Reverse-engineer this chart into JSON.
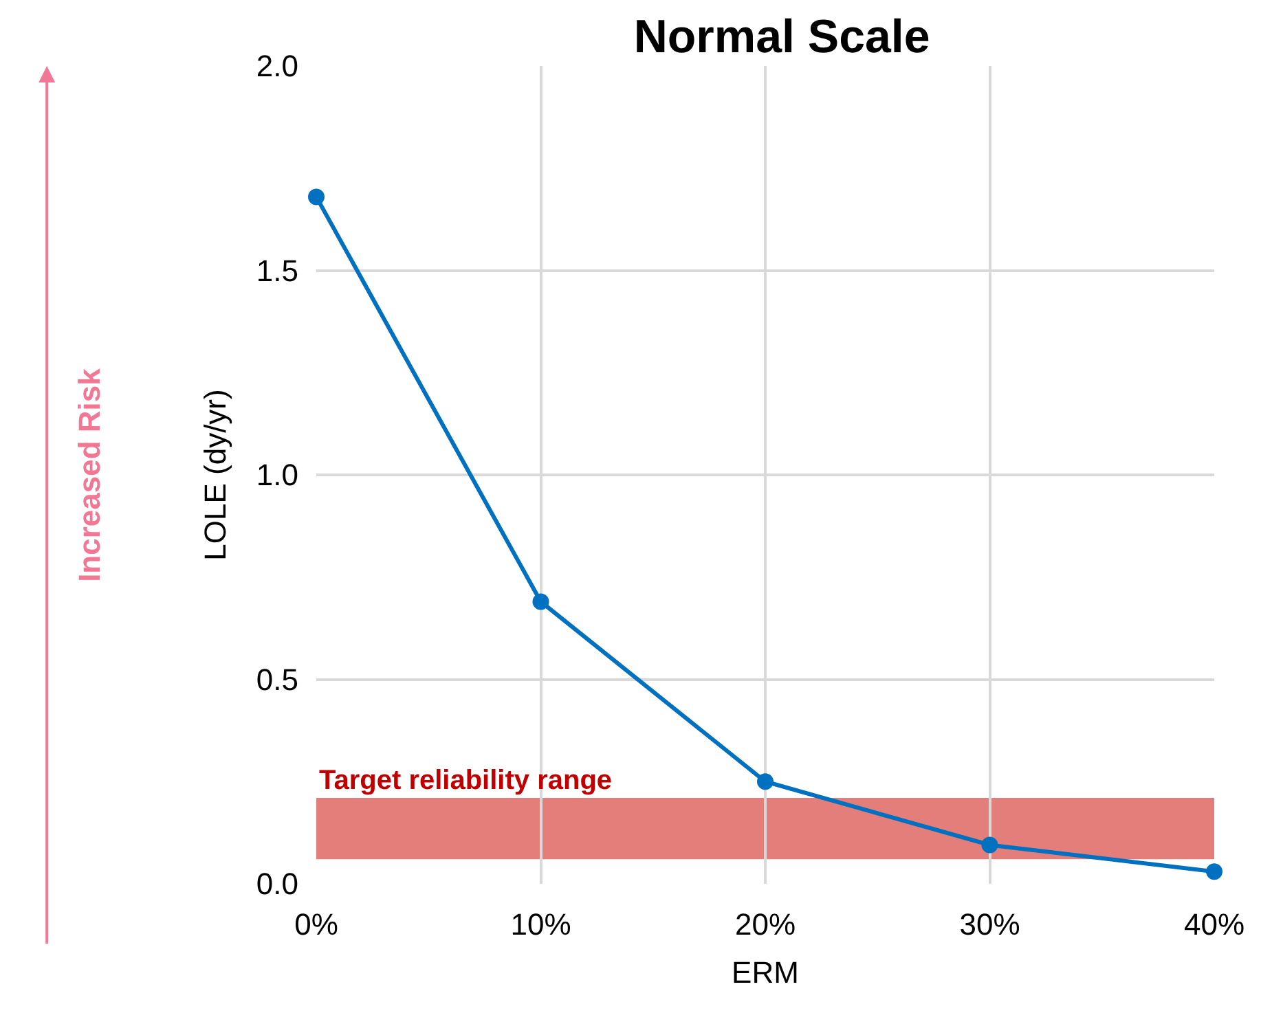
{
  "chart_data": {
    "type": "line",
    "title": "Normal Scale",
    "xlabel": "ERM",
    "ylabel": "LOLE (dy/yr)",
    "x": [
      0,
      10,
      20,
      30,
      40
    ],
    "series": [
      {
        "color": "#0070c0",
        "values": [
          1.68,
          0.69,
          0.25,
          0.095,
          0.03
        ]
      }
    ],
    "xlim": [
      0,
      40
    ],
    "xticks": [
      {
        "value": 0,
        "label": "0%"
      },
      {
        "value": 10,
        "label": "10%"
      },
      {
        "value": 20,
        "label": "20%"
      },
      {
        "value": 30,
        "label": "30%"
      },
      {
        "value": 40,
        "label": "40%"
      }
    ],
    "ylim": [
      0,
      2
    ],
    "yticks": [
      {
        "value": 0,
        "label": "0.0"
      },
      {
        "value": 0.5,
        "label": "0.5"
      },
      {
        "value": 1,
        "label": "1.0"
      },
      {
        "value": 1.5,
        "label": "1.5"
      },
      {
        "value": 2,
        "label": "2.0"
      }
    ],
    "bands": [
      {
        "axis": "y",
        "from": 0.06,
        "to": 0.21,
        "label": "Target reliability range",
        "color": "#d9534f"
      }
    ],
    "annotations": [
      "Increased Risk"
    ],
    "grid": true,
    "marker": "circle",
    "line_style": "solid"
  }
}
